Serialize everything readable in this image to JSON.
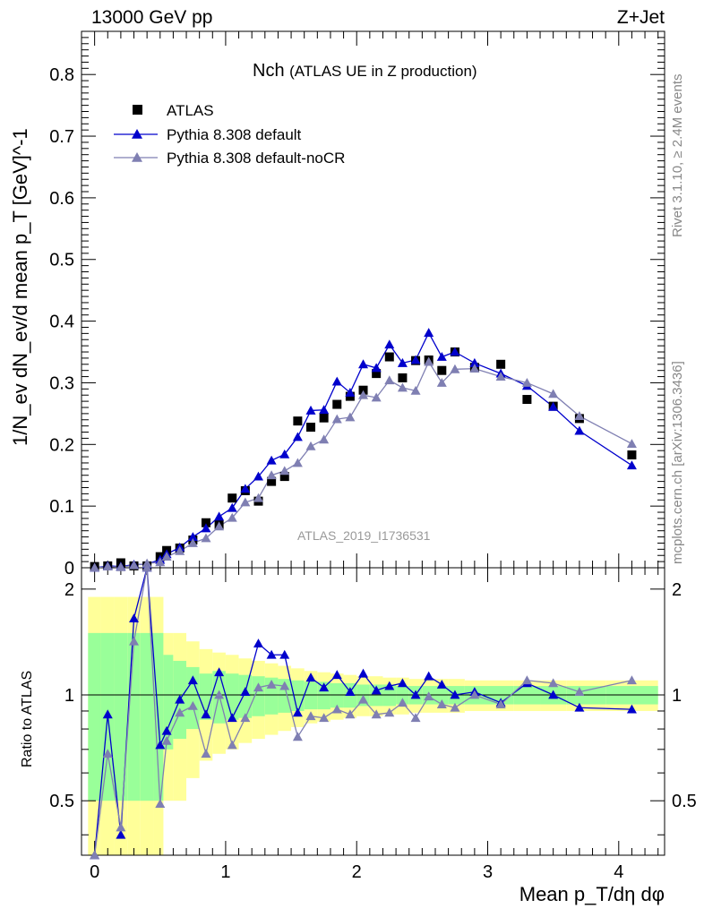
{
  "header": {
    "left": "13000 GeV pp",
    "right": "Z+Jet"
  },
  "title": {
    "main": "Nch",
    "sub": "(ATLAS UE in Z production)"
  },
  "analysis_id": "ATLAS_2019_I1736531",
  "side_text": {
    "rivet": "Rivet 3.1.10, ≥ 2.4M events",
    "mcplots": "mcplots.cern.ch [arXiv:1306.3436]"
  },
  "axes": {
    "ylabel_main": "1/N_ev dN_ev/d mean p_T [GeV]^-1",
    "ylabel_ratio": "Ratio to ATLAS",
    "xlabel": "Mean p_T/dη dφ"
  },
  "colors": {
    "atlas": "#000000",
    "default": "#0000cc",
    "nocr": "#7f7fb2",
    "band_inner": "#99ff99",
    "band_outer": "#ffff99"
  },
  "chart_data": {
    "type": "scatter",
    "xlim": [
      -0.1,
      4.35
    ],
    "ylim": [
      0,
      0.87
    ],
    "ratio_ylim": [
      0.35,
      2.3
    ],
    "x_ticks": [
      "0",
      "1",
      "2",
      "3",
      "4"
    ],
    "y_ticks": [
      "0",
      "0.1",
      "0.2",
      "0.3",
      "0.4",
      "0.5",
      "0.6",
      "0.7",
      "0.8"
    ],
    "ratio_ticks": [
      "0.5",
      "1",
      "2"
    ],
    "legend_placement": "top-left",
    "x": [
      0.0,
      0.1,
      0.2,
      0.3,
      0.4,
      0.5,
      0.55,
      0.65,
      0.75,
      0.85,
      0.95,
      1.05,
      1.15,
      1.25,
      1.35,
      1.45,
      1.55,
      1.65,
      1.75,
      1.85,
      1.95,
      2.05,
      2.15,
      2.25,
      2.35,
      2.45,
      2.55,
      2.65,
      2.75,
      2.9,
      3.1,
      3.3,
      3.5,
      3.7,
      4.1
    ],
    "series": [
      {
        "name": "ATLAS",
        "values": [
          0.002,
          0.003,
          0.008,
          0.003,
          0.003,
          0.018,
          0.028,
          0.032,
          0.045,
          0.073,
          0.07,
          0.113,
          0.125,
          0.108,
          0.14,
          0.148,
          0.238,
          0.228,
          0.243,
          0.265,
          0.278,
          0.288,
          0.315,
          0.342,
          0.308,
          0.336,
          0.337,
          0.32,
          0.35,
          0.325,
          0.33,
          0.273,
          0.262,
          0.242,
          0.183
        ]
      },
      {
        "name": "Pythia 8.308 default",
        "values": [
          0.0,
          0.003,
          0.002,
          0.005,
          0.006,
          0.013,
          0.022,
          0.033,
          0.05,
          0.064,
          0.083,
          0.097,
          0.128,
          0.148,
          0.174,
          0.184,
          0.212,
          0.255,
          0.256,
          0.302,
          0.284,
          0.33,
          0.324,
          0.362,
          0.332,
          0.337,
          0.381,
          0.342,
          0.35,
          0.332,
          0.315,
          0.295,
          0.261,
          0.222,
          0.166
        ]
      },
      {
        "name": "Pythia 8.308 default-noCR",
        "values": [
          0.0,
          0.002,
          0.001,
          0.004,
          0.007,
          0.009,
          0.018,
          0.027,
          0.04,
          0.048,
          0.067,
          0.081,
          0.106,
          0.113,
          0.15,
          0.157,
          0.17,
          0.197,
          0.208,
          0.241,
          0.244,
          0.28,
          0.276,
          0.304,
          0.292,
          0.287,
          0.334,
          0.3,
          0.322,
          0.323,
          0.31,
          0.3,
          0.282,
          0.246,
          0.201
        ]
      }
    ],
    "ratio": {
      "default": [
        0.3,
        0.88,
        0.4,
        1.65,
        2.5,
        0.72,
        0.79,
        0.97,
        1.1,
        0.88,
        1.16,
        0.86,
        1.02,
        1.4,
        1.3,
        1.3,
        0.89,
        1.12,
        1.05,
        1.14,
        1.02,
        1.15,
        1.03,
        1.06,
        1.08,
        1.0,
        1.13,
        1.07,
        1.0,
        1.02,
        0.95,
        1.08,
        1.0,
        0.92,
        0.91
      ],
      "nocr": [
        0.2,
        0.68,
        0.42,
        1.42,
        2.3,
        0.49,
        0.74,
        0.89,
        0.93,
        0.68,
        1.0,
        0.72,
        0.86,
        1.05,
        1.07,
        1.06,
        0.76,
        0.87,
        0.86,
        0.91,
        0.88,
        0.97,
        0.88,
        0.89,
        0.95,
        0.86,
        0.99,
        0.94,
        0.92,
        1.0,
        0.94,
        1.1,
        1.08,
        1.02,
        1.1
      ]
    },
    "bands": {
      "inner": [
        0.5,
        0.5,
        0.5,
        0.5,
        0.5,
        0.5,
        0.3,
        0.25,
        0.2,
        0.15,
        0.17,
        0.15,
        0.14,
        0.13,
        0.12,
        0.11,
        0.1,
        0.09,
        0.09,
        0.08,
        0.08,
        0.07,
        0.07,
        0.07,
        0.06,
        0.06,
        0.06,
        0.06,
        0.06,
        0.06,
        0.06,
        0.06,
        0.06,
        0.06,
        0.06
      ],
      "outer": [
        0.9,
        0.9,
        0.9,
        0.9,
        0.9,
        0.9,
        0.5,
        0.5,
        0.42,
        0.35,
        0.32,
        0.3,
        0.27,
        0.25,
        0.23,
        0.21,
        0.19,
        0.17,
        0.16,
        0.15,
        0.14,
        0.13,
        0.13,
        0.12,
        0.12,
        0.11,
        0.11,
        0.11,
        0.11,
        0.1,
        0.1,
        0.1,
        0.1,
        0.1,
        0.1
      ]
    }
  }
}
